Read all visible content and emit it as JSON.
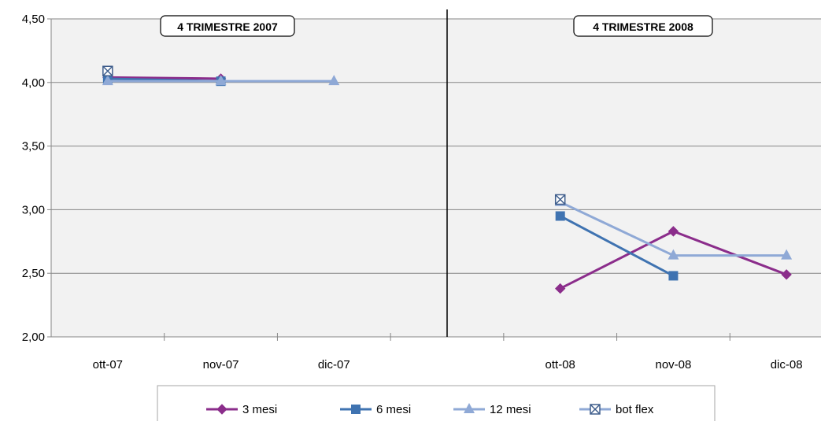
{
  "chart_data": {
    "type": "line",
    "ylim": [
      2.0,
      4.5
    ],
    "yticks": [
      "2,00",
      "2,50",
      "3,00",
      "3,50",
      "4,00",
      "4,50"
    ],
    "panels": [
      {
        "title": "4  TRIMESTRE 2007",
        "categories": [
          "ott-07",
          "nov-07",
          "dic-07"
        ],
        "series": [
          {
            "name": "3  mesi",
            "values": [
              4.04,
              4.03,
              null
            ]
          },
          {
            "name": "6  mesi",
            "values": [
              4.03,
              4.01,
              null
            ]
          },
          {
            "name": "12 mesi",
            "values": [
              4.01,
              4.01,
              4.01
            ]
          },
          {
            "name": "bot flex",
            "values": [
              4.09,
              null,
              null
            ]
          }
        ]
      },
      {
        "title": "4  TRIMESTRE 2008",
        "categories": [
          "ott-08",
          "nov-08",
          "dic-08"
        ],
        "series": [
          {
            "name": "3  mesi",
            "values": [
              2.38,
              2.83,
              2.49
            ]
          },
          {
            "name": "6  mesi",
            "values": [
              2.95,
              2.48,
              null
            ]
          },
          {
            "name": "12 mesi",
            "values": [
              3.06,
              2.64,
              2.64
            ]
          },
          {
            "name": "bot flex",
            "values": [
              3.08,
              null,
              null
            ]
          }
        ]
      }
    ],
    "legend": {
      "position": "bottom",
      "entries": [
        {
          "name": "3  mesi",
          "marker": "diamond",
          "color": "#8B2D8B"
        },
        {
          "name": "6  mesi",
          "marker": "square",
          "color": "#3F73B1"
        },
        {
          "name": "12 mesi",
          "marker": "triangle",
          "color": "#8FA9D6"
        },
        {
          "name": "bot flex",
          "marker": "x-square",
          "color": "#8FA9D6"
        }
      ]
    },
    "grid": true,
    "colors": {
      "plot_bg": "#F2F2F2",
      "grid": "#868686",
      "series_3m": "#8B2D8B",
      "series_6m": "#3F73B1",
      "series_12m": "#8FA9D6",
      "series_flex": "#3F5E8C"
    }
  }
}
